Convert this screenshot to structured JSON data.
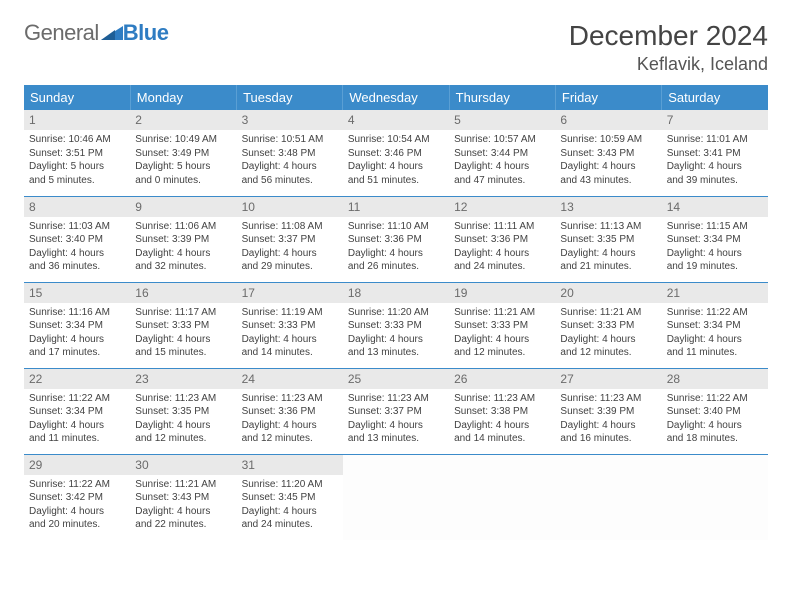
{
  "logo": {
    "part1": "General",
    "part2": "Blue"
  },
  "title": "December 2024",
  "location": "Keflavik, Iceland",
  "colors": {
    "header_bg": "#3b8bca",
    "header_text": "#ffffff",
    "daynum_bg": "#e9e9e9",
    "daynum_text": "#6b6b6b",
    "border": "#3b8bca",
    "logo_gray": "#6b6b6b",
    "logo_blue": "#2e7cc2",
    "body_text": "#424242"
  },
  "weekdays": [
    "Sunday",
    "Monday",
    "Tuesday",
    "Wednesday",
    "Thursday",
    "Friday",
    "Saturday"
  ],
  "weeks": [
    [
      {
        "day": "1",
        "sunrise": "Sunrise: 10:46 AM",
        "sunset": "Sunset: 3:51 PM",
        "daylight1": "Daylight: 5 hours",
        "daylight2": "and 5 minutes."
      },
      {
        "day": "2",
        "sunrise": "Sunrise: 10:49 AM",
        "sunset": "Sunset: 3:49 PM",
        "daylight1": "Daylight: 5 hours",
        "daylight2": "and 0 minutes."
      },
      {
        "day": "3",
        "sunrise": "Sunrise: 10:51 AM",
        "sunset": "Sunset: 3:48 PM",
        "daylight1": "Daylight: 4 hours",
        "daylight2": "and 56 minutes."
      },
      {
        "day": "4",
        "sunrise": "Sunrise: 10:54 AM",
        "sunset": "Sunset: 3:46 PM",
        "daylight1": "Daylight: 4 hours",
        "daylight2": "and 51 minutes."
      },
      {
        "day": "5",
        "sunrise": "Sunrise: 10:57 AM",
        "sunset": "Sunset: 3:44 PM",
        "daylight1": "Daylight: 4 hours",
        "daylight2": "and 47 minutes."
      },
      {
        "day": "6",
        "sunrise": "Sunrise: 10:59 AM",
        "sunset": "Sunset: 3:43 PM",
        "daylight1": "Daylight: 4 hours",
        "daylight2": "and 43 minutes."
      },
      {
        "day": "7",
        "sunrise": "Sunrise: 11:01 AM",
        "sunset": "Sunset: 3:41 PM",
        "daylight1": "Daylight: 4 hours",
        "daylight2": "and 39 minutes."
      }
    ],
    [
      {
        "day": "8",
        "sunrise": "Sunrise: 11:03 AM",
        "sunset": "Sunset: 3:40 PM",
        "daylight1": "Daylight: 4 hours",
        "daylight2": "and 36 minutes."
      },
      {
        "day": "9",
        "sunrise": "Sunrise: 11:06 AM",
        "sunset": "Sunset: 3:39 PM",
        "daylight1": "Daylight: 4 hours",
        "daylight2": "and 32 minutes."
      },
      {
        "day": "10",
        "sunrise": "Sunrise: 11:08 AM",
        "sunset": "Sunset: 3:37 PM",
        "daylight1": "Daylight: 4 hours",
        "daylight2": "and 29 minutes."
      },
      {
        "day": "11",
        "sunrise": "Sunrise: 11:10 AM",
        "sunset": "Sunset: 3:36 PM",
        "daylight1": "Daylight: 4 hours",
        "daylight2": "and 26 minutes."
      },
      {
        "day": "12",
        "sunrise": "Sunrise: 11:11 AM",
        "sunset": "Sunset: 3:36 PM",
        "daylight1": "Daylight: 4 hours",
        "daylight2": "and 24 minutes."
      },
      {
        "day": "13",
        "sunrise": "Sunrise: 11:13 AM",
        "sunset": "Sunset: 3:35 PM",
        "daylight1": "Daylight: 4 hours",
        "daylight2": "and 21 minutes."
      },
      {
        "day": "14",
        "sunrise": "Sunrise: 11:15 AM",
        "sunset": "Sunset: 3:34 PM",
        "daylight1": "Daylight: 4 hours",
        "daylight2": "and 19 minutes."
      }
    ],
    [
      {
        "day": "15",
        "sunrise": "Sunrise: 11:16 AM",
        "sunset": "Sunset: 3:34 PM",
        "daylight1": "Daylight: 4 hours",
        "daylight2": "and 17 minutes."
      },
      {
        "day": "16",
        "sunrise": "Sunrise: 11:17 AM",
        "sunset": "Sunset: 3:33 PM",
        "daylight1": "Daylight: 4 hours",
        "daylight2": "and 15 minutes."
      },
      {
        "day": "17",
        "sunrise": "Sunrise: 11:19 AM",
        "sunset": "Sunset: 3:33 PM",
        "daylight1": "Daylight: 4 hours",
        "daylight2": "and 14 minutes."
      },
      {
        "day": "18",
        "sunrise": "Sunrise: 11:20 AM",
        "sunset": "Sunset: 3:33 PM",
        "daylight1": "Daylight: 4 hours",
        "daylight2": "and 13 minutes."
      },
      {
        "day": "19",
        "sunrise": "Sunrise: 11:21 AM",
        "sunset": "Sunset: 3:33 PM",
        "daylight1": "Daylight: 4 hours",
        "daylight2": "and 12 minutes."
      },
      {
        "day": "20",
        "sunrise": "Sunrise: 11:21 AM",
        "sunset": "Sunset: 3:33 PM",
        "daylight1": "Daylight: 4 hours",
        "daylight2": "and 12 minutes."
      },
      {
        "day": "21",
        "sunrise": "Sunrise: 11:22 AM",
        "sunset": "Sunset: 3:34 PM",
        "daylight1": "Daylight: 4 hours",
        "daylight2": "and 11 minutes."
      }
    ],
    [
      {
        "day": "22",
        "sunrise": "Sunrise: 11:22 AM",
        "sunset": "Sunset: 3:34 PM",
        "daylight1": "Daylight: 4 hours",
        "daylight2": "and 11 minutes."
      },
      {
        "day": "23",
        "sunrise": "Sunrise: 11:23 AM",
        "sunset": "Sunset: 3:35 PM",
        "daylight1": "Daylight: 4 hours",
        "daylight2": "and 12 minutes."
      },
      {
        "day": "24",
        "sunrise": "Sunrise: 11:23 AM",
        "sunset": "Sunset: 3:36 PM",
        "daylight1": "Daylight: 4 hours",
        "daylight2": "and 12 minutes."
      },
      {
        "day": "25",
        "sunrise": "Sunrise: 11:23 AM",
        "sunset": "Sunset: 3:37 PM",
        "daylight1": "Daylight: 4 hours",
        "daylight2": "and 13 minutes."
      },
      {
        "day": "26",
        "sunrise": "Sunrise: 11:23 AM",
        "sunset": "Sunset: 3:38 PM",
        "daylight1": "Daylight: 4 hours",
        "daylight2": "and 14 minutes."
      },
      {
        "day": "27",
        "sunrise": "Sunrise: 11:23 AM",
        "sunset": "Sunset: 3:39 PM",
        "daylight1": "Daylight: 4 hours",
        "daylight2": "and 16 minutes."
      },
      {
        "day": "28",
        "sunrise": "Sunrise: 11:22 AM",
        "sunset": "Sunset: 3:40 PM",
        "daylight1": "Daylight: 4 hours",
        "daylight2": "and 18 minutes."
      }
    ],
    [
      {
        "day": "29",
        "sunrise": "Sunrise: 11:22 AM",
        "sunset": "Sunset: 3:42 PM",
        "daylight1": "Daylight: 4 hours",
        "daylight2": "and 20 minutes."
      },
      {
        "day": "30",
        "sunrise": "Sunrise: 11:21 AM",
        "sunset": "Sunset: 3:43 PM",
        "daylight1": "Daylight: 4 hours",
        "daylight2": "and 22 minutes."
      },
      {
        "day": "31",
        "sunrise": "Sunrise: 11:20 AM",
        "sunset": "Sunset: 3:45 PM",
        "daylight1": "Daylight: 4 hours",
        "daylight2": "and 24 minutes."
      },
      {
        "empty": true
      },
      {
        "empty": true
      },
      {
        "empty": true
      },
      {
        "empty": true
      }
    ]
  ]
}
